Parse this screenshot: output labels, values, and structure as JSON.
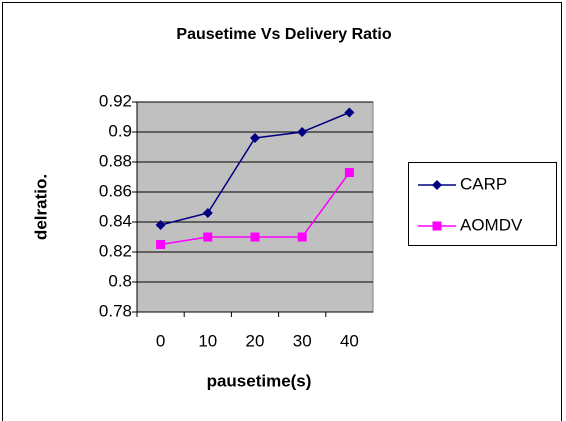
{
  "chart_data": {
    "type": "line",
    "title": "Pausetime Vs Delivery Ratio",
    "x_label": "pausetime(s)",
    "y_label": "delratio.",
    "categories": [
      "0",
      "10",
      "20",
      "30",
      "40"
    ],
    "series": [
      {
        "name": "CARP",
        "color": "#000080",
        "marker": "diamond",
        "values": [
          0.838,
          0.846,
          0.896,
          0.9,
          0.913
        ]
      },
      {
        "name": "AOMDV",
        "color": "#ff00ff",
        "marker": "square",
        "values": [
          0.825,
          0.83,
          0.83,
          0.83,
          0.873
        ]
      }
    ],
    "ylim": [
      0.78,
      0.92
    ],
    "yticks": [
      0.78,
      0.8,
      0.82,
      0.84,
      0.86,
      0.88,
      0.9,
      0.92
    ],
    "grid": true,
    "legend": "right"
  }
}
